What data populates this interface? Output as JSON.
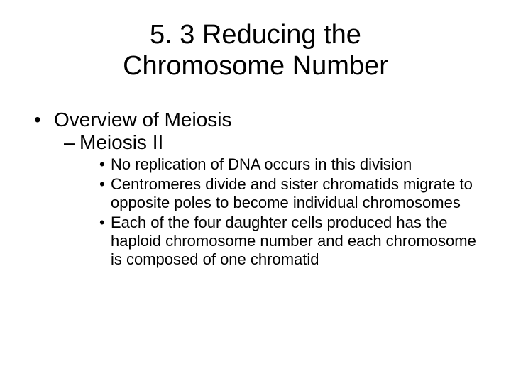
{
  "title_line1": "5. 3  Reducing the",
  "title_line2": "Chromosome Number",
  "lvl1_text": "Overview of Meiosis",
  "lvl2_text": "Meiosis II",
  "lvl3_items": [
    "No replication of DNA occurs in this division",
    "Centromeres divide and sister chromatids migrate to opposite poles to become individual chromosomes",
    "Each of the four daughter cells produced has the haploid chromosome number and each chromosome is composed of one chromatid"
  ],
  "colors": {
    "background": "#ffffff",
    "text": "#000000"
  },
  "fonts": {
    "title_size": 38,
    "lvl1_size": 28,
    "lvl2_size": 28,
    "lvl3_size": 22
  }
}
